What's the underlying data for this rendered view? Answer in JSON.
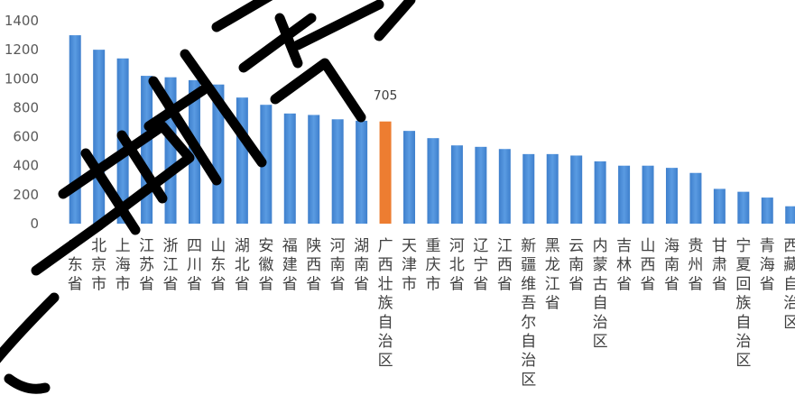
{
  "chart_data": {
    "type": "bar",
    "categories": [
      "广东省",
      "北京市",
      "上海市",
      "江苏省",
      "浙江省",
      "四川省",
      "山东省",
      "湖北省",
      "安徽省",
      "福建省",
      "陕西省",
      "河南省",
      "湖南省",
      "广西壮族自治区",
      "天津市",
      "重庆市",
      "河北省",
      "辽宁省",
      "江西省",
      "新疆维吾尔自治区",
      "黑龙江省",
      "云南省",
      "内蒙古自治区",
      "吉林省",
      "山西省",
      "海南省",
      "贵州省",
      "甘肃省",
      "宁夏回族自治区",
      "青海省",
      "西藏自治区"
    ],
    "values": [
      1300,
      1200,
      1140,
      1020,
      1010,
      990,
      960,
      870,
      820,
      760,
      750,
      720,
      710,
      705,
      640,
      590,
      540,
      530,
      515,
      480,
      480,
      470,
      430,
      400,
      400,
      385,
      350,
      240,
      220,
      180,
      120
    ],
    "highlight_index": 13,
    "data_labels": {
      "13": "705"
    },
    "yticks": [
      0,
      200,
      400,
      600,
      800,
      1000,
      1200,
      1400
    ],
    "ylim": [
      0,
      1400
    ],
    "title": "",
    "xlabel": "",
    "ylabel": "",
    "grid": false,
    "legend": "none",
    "colors": {
      "bar": "#4A8FD9",
      "highlight": "#ED7D31",
      "tick_text": "#595959"
    }
  }
}
